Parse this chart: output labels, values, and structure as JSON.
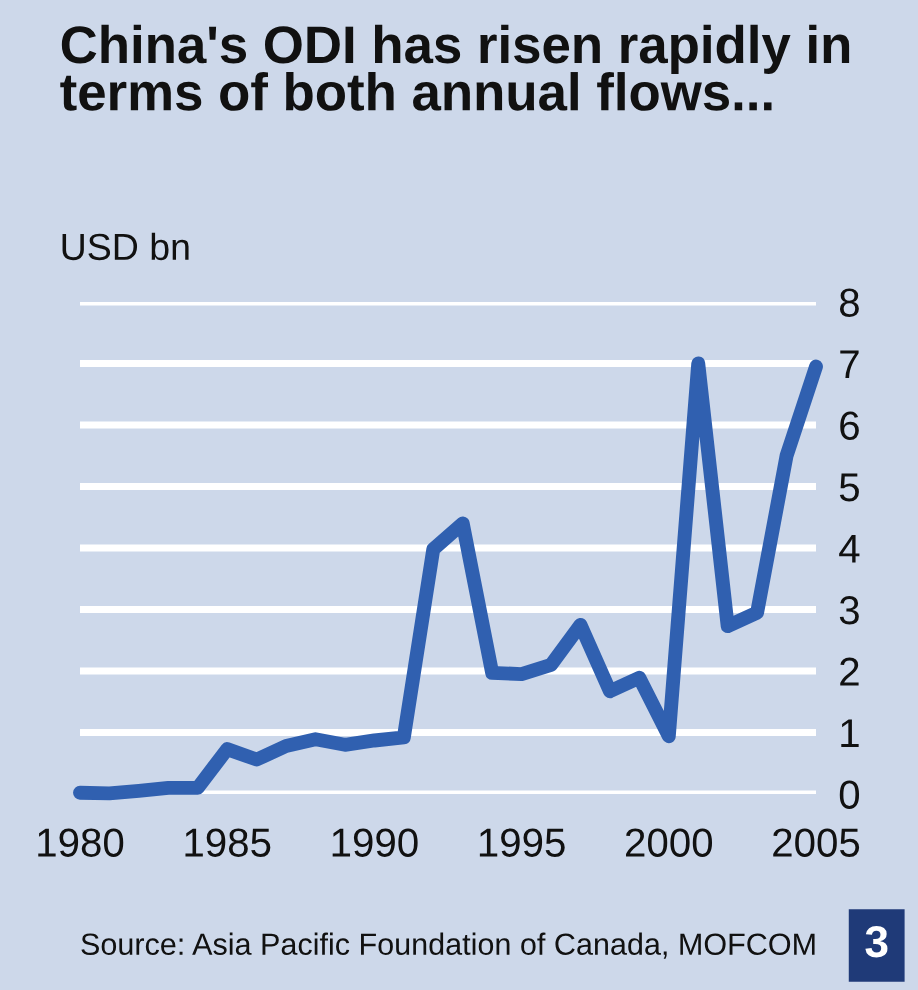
{
  "chart_data": {
    "type": "line",
    "title": "China's ODI has risen rapidly in terms of both annual flows...",
    "ylabel": "USD bn",
    "x": [
      1980,
      1981,
      1982,
      1983,
      1984,
      1985,
      1986,
      1987,
      1988,
      1989,
      1990,
      1991,
      1992,
      1993,
      1994,
      1995,
      1996,
      1997,
      1998,
      1999,
      2000,
      2001,
      2002,
      2003,
      2004,
      2005
    ],
    "series": [
      {
        "color": "#3060b0",
        "values": [
          0.02,
          0.01,
          0.05,
          0.1,
          0.1,
          0.73,
          0.56,
          0.78,
          0.89,
          0.8,
          0.87,
          0.92,
          3.98,
          4.4,
          1.97,
          1.95,
          2.1,
          2.75,
          1.67,
          1.89,
          0.94,
          7.0,
          2.73,
          2.95,
          5.5,
          6.95
        ]
      }
    ],
    "xlim": [
      1980,
      2005
    ],
    "xticks": [
      1980,
      1985,
      1990,
      1995,
      2000,
      2005
    ],
    "ylim": [
      0,
      8
    ],
    "yticks": [
      0,
      1,
      2,
      3,
      4,
      5,
      6,
      7,
      8
    ],
    "grid": "y",
    "legend": false,
    "marker": "none",
    "line_style": "solid",
    "annotations": [
      "Source: Asia Pacific Foundation of Canada, MOFCOM",
      "3"
    ]
  }
}
